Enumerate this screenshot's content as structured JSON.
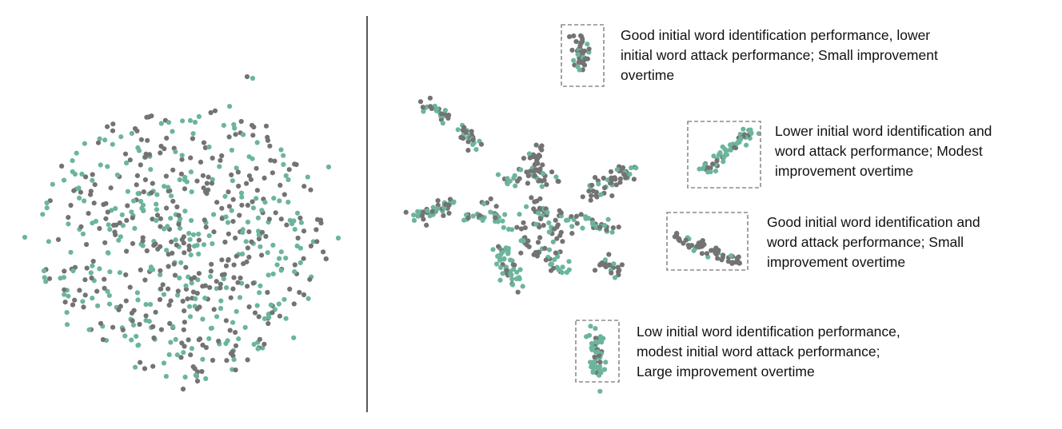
{
  "colors": {
    "gray": "#737373",
    "green": "#6cb59d",
    "divider": "#222222",
    "box": "#8c8c8c",
    "text": "#111111"
  },
  "annotations": [
    {
      "id": "cluster-1",
      "lines": [
        "Good initial word identification performance, lower",
        "initial word attack performance; Small improvement",
        "overtime"
      ]
    },
    {
      "id": "cluster-2",
      "lines": [
        "Lower initial word identification and",
        "word attack performance; Modest",
        "improvement overtime"
      ]
    },
    {
      "id": "cluster-3",
      "lines": [
        "Good initial word identification and",
        "word attack performance; Small",
        "improvement overtime"
      ]
    },
    {
      "id": "cluster-4",
      "lines": [
        "Low initial word identification performance,",
        "modest initial word attack performance;",
        "Large improvement overtime"
      ]
    }
  ]
}
